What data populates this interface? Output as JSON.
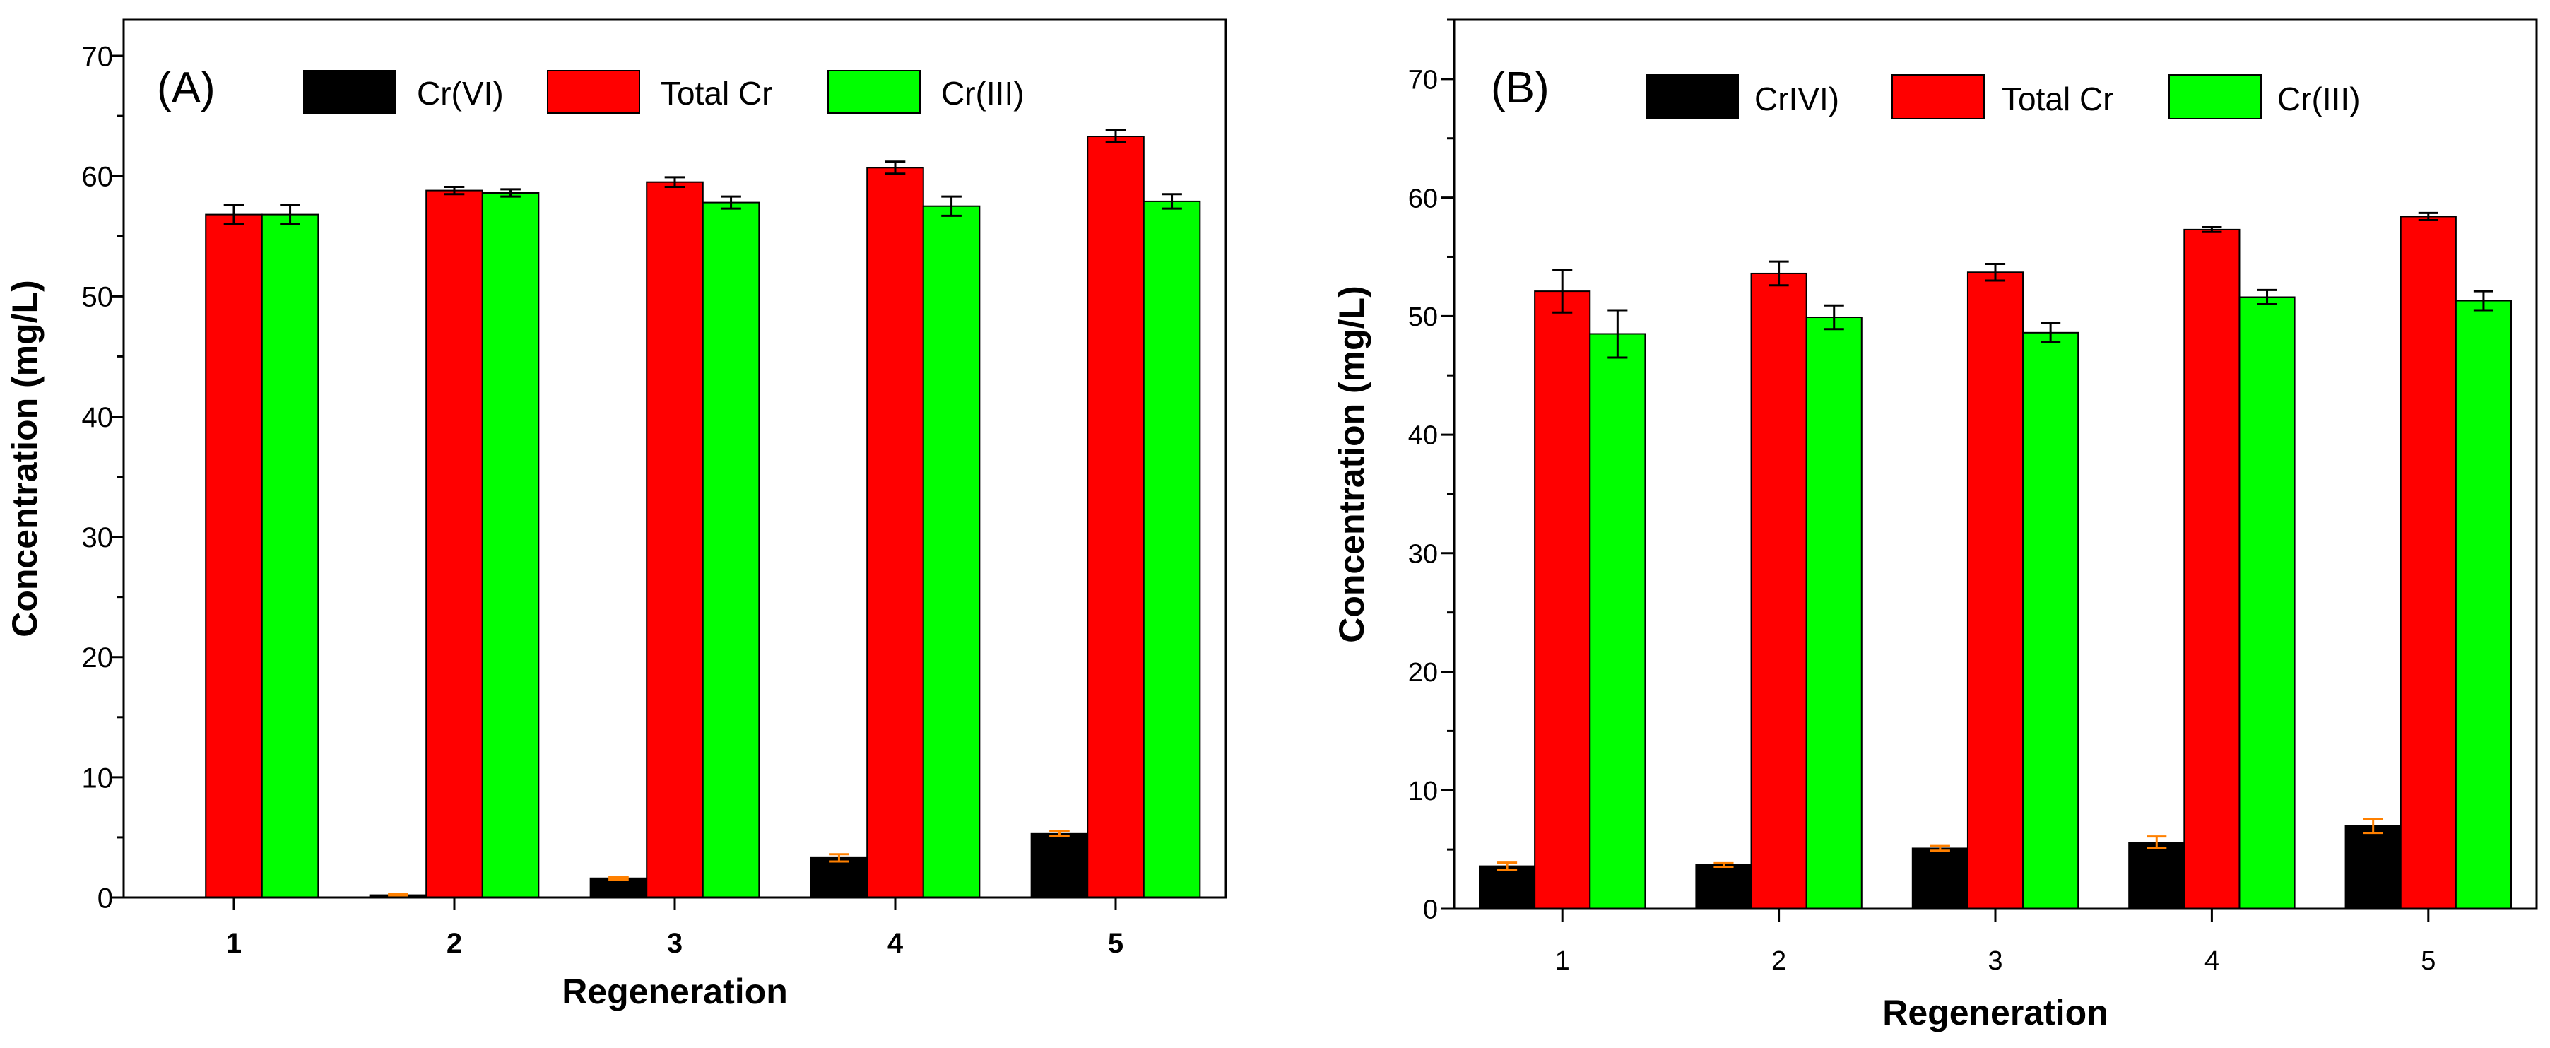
{
  "chart_data": [
    {
      "type": "bar",
      "panel_label": "(A)",
      "xlabel": "Regeneration",
      "ylabel": "Concentration (mg/L)",
      "categories": [
        "1",
        "2",
        "3",
        "4",
        "5"
      ],
      "ylim": [
        0,
        73
      ],
      "yticks": [
        0,
        10,
        20,
        30,
        40,
        50,
        60,
        70
      ],
      "legend_placement": "top-inside",
      "series": [
        {
          "name": "Cr(VI)",
          "color": "#000000",
          "values": [
            0,
            0.2,
            1.6,
            3.3,
            5.3
          ],
          "errors": [
            0,
            0.1,
            0.1,
            0.3,
            0.2
          ]
        },
        {
          "name": "Total Cr",
          "color": "#ff0000",
          "values": [
            56.8,
            58.8,
            59.5,
            60.7,
            63.3
          ],
          "errors": [
            0.8,
            0.3,
            0.4,
            0.5,
            0.5
          ]
        },
        {
          "name": "Cr(III)",
          "color": "#00ff00",
          "values": [
            56.8,
            58.6,
            57.8,
            57.5,
            57.9
          ],
          "errors": [
            0.8,
            0.3,
            0.5,
            0.8,
            0.6
          ]
        }
      ]
    },
    {
      "type": "bar",
      "panel_label": "(B)",
      "xlabel": "Regeneration",
      "ylabel": "Concentration (mg/L)",
      "categories": [
        "1",
        "2",
        "3",
        "4",
        "5"
      ],
      "ylim": [
        0,
        75
      ],
      "yticks": [
        0,
        10,
        20,
        30,
        40,
        50,
        60,
        70
      ],
      "legend_placement": "top-inside",
      "series": [
        {
          "name": "CrIVI)",
          "color": "#000000",
          "values": [
            3.6,
            3.7,
            5.1,
            5.6,
            7.0
          ],
          "errors": [
            0.3,
            0.15,
            0.2,
            0.5,
            0.6
          ]
        },
        {
          "name": "Total Cr",
          "color": "#ff0000",
          "values": [
            52.1,
            53.6,
            53.7,
            57.3,
            58.4
          ],
          "errors": [
            1.8,
            1.0,
            0.7,
            0.2,
            0.3
          ]
        },
        {
          "name": "Cr(III)",
          "color": "#00ff00",
          "values": [
            48.5,
            49.9,
            48.6,
            51.6,
            51.3
          ],
          "errors": [
            2.0,
            1.0,
            0.8,
            0.6,
            0.8
          ]
        }
      ]
    }
  ]
}
